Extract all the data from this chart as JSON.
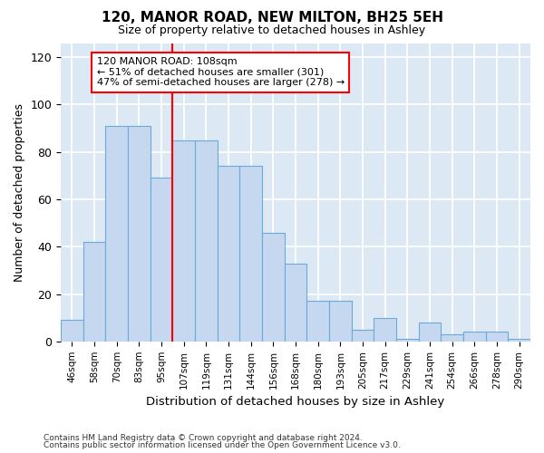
{
  "title": "120, MANOR ROAD, NEW MILTON, BH25 5EH",
  "subtitle": "Size of property relative to detached houses in Ashley",
  "xlabel": "Distribution of detached houses by size in Ashley",
  "ylabel": "Number of detached properties",
  "categories": [
    "46sqm",
    "58sqm",
    "70sqm",
    "83sqm",
    "95sqm",
    "107sqm",
    "119sqm",
    "131sqm",
    "144sqm",
    "156sqm",
    "168sqm",
    "180sqm",
    "193sqm",
    "205sqm",
    "217sqm",
    "229sqm",
    "241sqm",
    "254sqm",
    "266sqm",
    "278sqm",
    "290sqm"
  ],
  "values": [
    9,
    42,
    91,
    91,
    69,
    85,
    85,
    74,
    74,
    46,
    33,
    17,
    17,
    5,
    10,
    1,
    8,
    3,
    4,
    4,
    1
  ],
  "bar_color": "#c5d8f0",
  "bar_edge_color": "#6aaad4",
  "vline_x_index": 5,
  "vline_color": "red",
  "annotation_text": "120 MANOR ROAD: 108sqm\n← 51% of detached houses are smaller (301)\n47% of semi-detached houses are larger (278) →",
  "annotation_box_color": "white",
  "annotation_box_edge": "red",
  "ylim": [
    0,
    126
  ],
  "yticks": [
    0,
    20,
    40,
    60,
    80,
    100,
    120
  ],
  "background_color": "#dde8f5",
  "grid_color": "white",
  "footer1": "Contains HM Land Registry data © Crown copyright and database right 2024.",
  "footer2": "Contains public sector information licensed under the Open Government Licence v3.0."
}
